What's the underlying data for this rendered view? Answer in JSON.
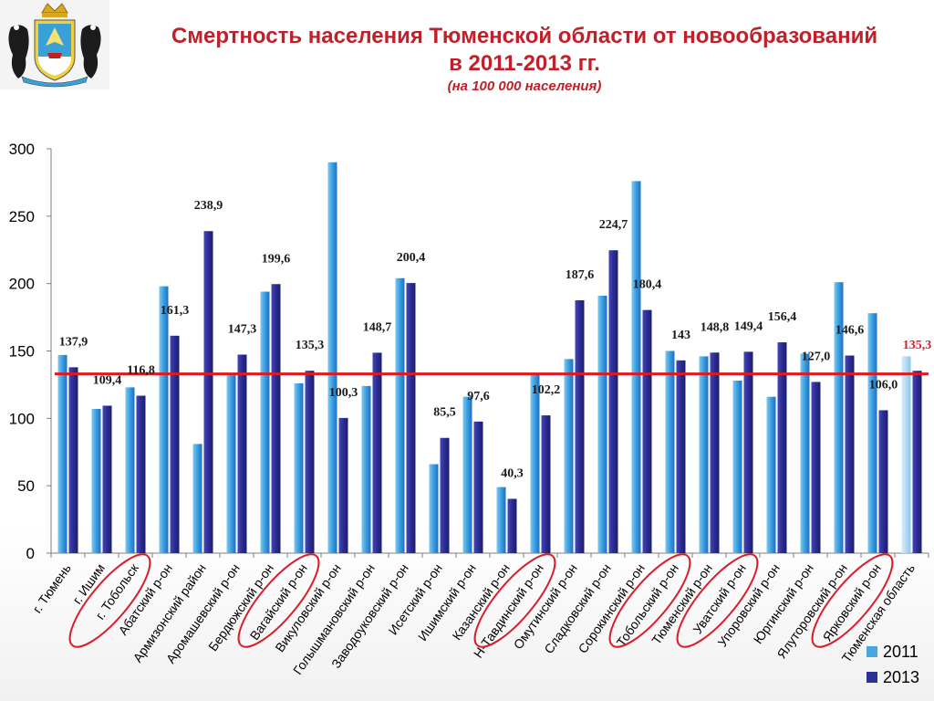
{
  "header": {
    "title_line1": "Смертность населения Тюменской области от новообразований",
    "title_line2": "в 2011-2013 гг.",
    "subtitle": "(на 100 000 населения)"
  },
  "colors": {
    "title": "#c0202a",
    "series_2011": "#4aa6e0",
    "series_2013": "#2e2f97",
    "series_2011_region": "#a9d6f4",
    "reference_line": "#e0191e",
    "highlight_ellipse": "#d81e2a",
    "reference_label": "#d81e2a"
  },
  "legend": {
    "items": [
      {
        "label": "2011",
        "color": "#4aa6e0"
      },
      {
        "label": "2013",
        "color": "#2e2f97"
      }
    ]
  },
  "chart_data": {
    "type": "bar",
    "categories": [
      "г. Тюмень",
      "г. Ишим",
      "г. Тобольск",
      "Абатский р-он",
      "Армизонский район",
      "Аромашевский р-он",
      "Бердюжский р-он",
      "Вагайский р-он",
      "Викуловский р-он",
      "Голышмановский р-он",
      "Заводоуковский р-он",
      "Исетский р-он",
      "Ишимский р-он",
      "Казанский р-он",
      "Н-Тавдинский р-он",
      "Омутинский р-он",
      "Сладковский р-он",
      "Сорокинский р-он",
      "Тобольский р-он",
      "Тюменский р-он",
      "Уватский р-он",
      "Упоровский р-он",
      "Юргинский р-он",
      "Ялуторовский р-он",
      "Ярковский р-он",
      "Тюменская область"
    ],
    "series": [
      {
        "name": "2011",
        "values": [
          147,
          107,
          123,
          198,
          81,
          132,
          194,
          126,
          290,
          124,
          204,
          66,
          116,
          49,
          133,
          144,
          191,
          276,
          150,
          146,
          128,
          116,
          148,
          201,
          178,
          146
        ]
      },
      {
        "name": "2013",
        "values": [
          137.9,
          109.4,
          116.8,
          161.3,
          238.9,
          147.3,
          199.6,
          135.3,
          100.3,
          148.7,
          200.4,
          85.5,
          97.6,
          40.3,
          102.2,
          187.6,
          224.7,
          180.4,
          143,
          148.8,
          149.4,
          156.4,
          127.0,
          146.6,
          106.0,
          135.3
        ]
      }
    ],
    "data_labels_2013": [
      "137,9",
      "109,4",
      "116,8",
      "161,3",
      "238,9",
      "147,3",
      "199,6",
      "135,3",
      "100,3",
      "148,7",
      "200,4",
      "85,5",
      "97,6",
      "40,3",
      "102,2",
      "187,6",
      "224,7",
      "180,4",
      "143",
      "148,8",
      "149,4",
      "156,4",
      "127,0",
      "146,6",
      "106,0",
      "135,3"
    ],
    "ylim": [
      0,
      300
    ],
    "yticks": [
      0,
      50,
      100,
      150,
      200,
      250,
      300
    ],
    "reference_line": 133,
    "highlighted_categories": [
      "г. Тобольск",
      "Вагайский р-он",
      "Н-Тавдинский р-он",
      "Тобольский р-он",
      "Уватский р-он",
      "Ярковский р-он"
    ],
    "legend_placement": "bottom-right",
    "grid": false
  }
}
